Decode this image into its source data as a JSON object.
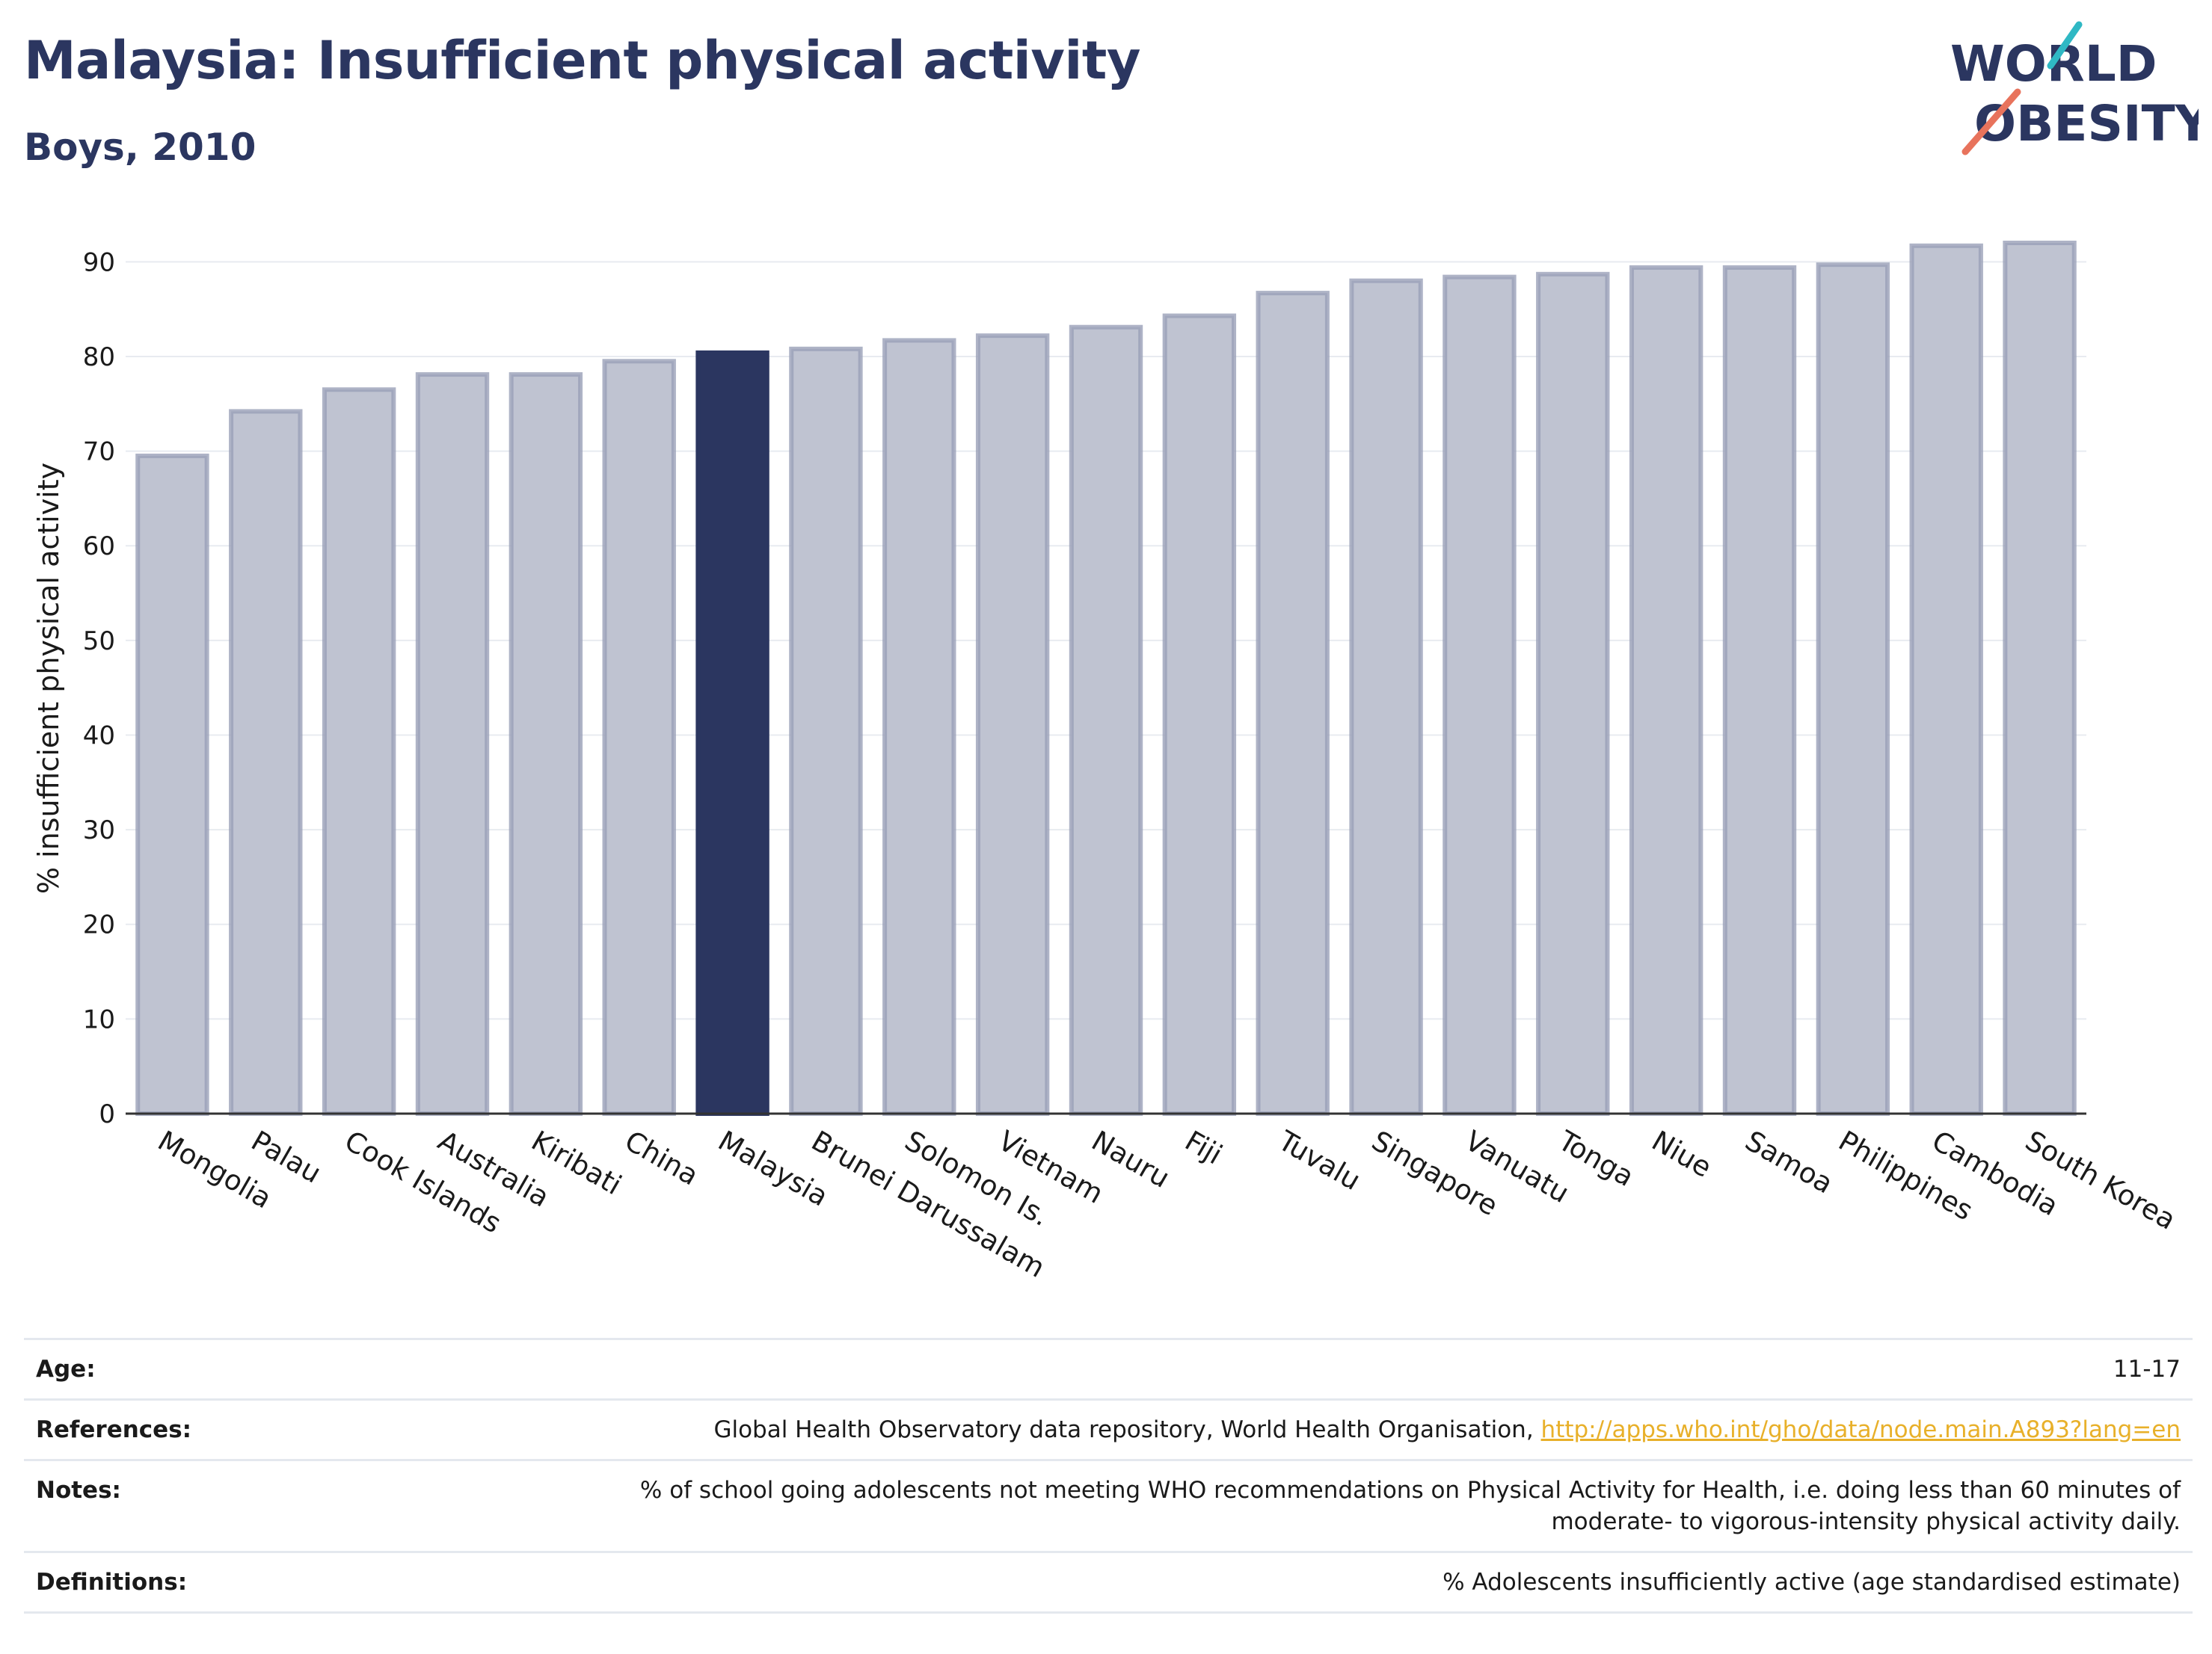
{
  "header": {
    "title": "Malaysia: Insufficient physical activity",
    "subtitle": "Boys, 2010"
  },
  "logo": {
    "line1": "WORLD",
    "line2": "OBESITY",
    "colors": {
      "text": "#2b3660",
      "teal": "#2fb8c4",
      "coral": "#e8735c"
    }
  },
  "chart_data": {
    "type": "bar",
    "title": "Malaysia: Insufficient physical activity",
    "subtitle": "Boys, 2010",
    "xlabel": "",
    "ylabel": "% insufficient physical activity",
    "ylim": [
      0,
      92
    ],
    "yticks": [
      0,
      10,
      20,
      30,
      40,
      50,
      60,
      70,
      80,
      90
    ],
    "grid": "horizontal",
    "highlight": "Malaysia",
    "colors": {
      "bar": "#bfc3d1",
      "bar_edge": "#9aa0b8",
      "highlight": "#2b3660",
      "grid": "#e8ebf0",
      "axis": "#333333"
    },
    "categories": [
      "Mongolia",
      "Palau",
      "Cook Islands",
      "Australia",
      "Kiribati",
      "China",
      "Malaysia",
      "Brunei Darussalam",
      "Solomon Is.",
      "Vietnam",
      "Nauru",
      "Fiji",
      "Tuvalu",
      "Singapore",
      "Vanuatu",
      "Tonga",
      "Niue",
      "Samoa",
      "Philippines",
      "Cambodia",
      "South Korea"
    ],
    "values": [
      69.5,
      74.2,
      76.5,
      78.1,
      78.1,
      79.5,
      80.4,
      80.8,
      81.7,
      82.2,
      83.1,
      84.3,
      86.7,
      88.0,
      88.4,
      88.7,
      89.4,
      89.4,
      89.7,
      91.7,
      92.0
    ]
  },
  "info": {
    "age_label": "Age:",
    "age_value": "11-17",
    "references_label": "References:",
    "references_text": "Global Health Observatory data repository, World Health Organisation,",
    "references_link": "http://apps.who.int/gho/data/node.main.A893?lang=en",
    "notes_label": "Notes:",
    "notes_line1": "% of school going adolescents not meeting WHO recommendations on Physical Activity for Health, i.e. doing less than 60 minutes of",
    "notes_line2": "moderate- to vigorous-intensity physical activity daily.",
    "definitions_label": "Definitions:",
    "definitions_value": "% Adolescents insufficiently active (age standardised estimate)"
  }
}
